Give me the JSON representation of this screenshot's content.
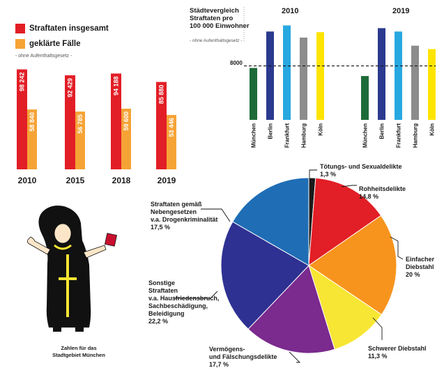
{
  "colors": {
    "red": "#e21e26",
    "orange": "#f6a336",
    "munich": "#1e6b3a",
    "berlin": "#2b3a8f",
    "frankfurt": "#27a8e0",
    "hamburg": "#8c8c8c",
    "koeln": "#ffe400"
  },
  "legend": {
    "total_label": "Straftaten insgesamt",
    "solved_label": "geklärte Fälle",
    "note": "- ohne Aufenthaltsgesetz -"
  },
  "city_compare": {
    "title_lines": [
      "Städtevergleich",
      "Straftaten pro",
      "100 000 Einwohner"
    ],
    "note": "- ohne Aufenthaltsgesetz -",
    "reference_label": "8000"
  },
  "caption_lines": [
    "Zahlen für das",
    "Stadtgebiet München"
  ],
  "chart_data": [
    {
      "type": "bar",
      "categories": [
        "2010",
        "2015",
        "2018",
        "2019"
      ],
      "series": [
        {
          "name": "Straftaten insgesamt",
          "values": [
            98242,
            92429,
            94188,
            85880
          ],
          "labels": [
            "98 242",
            "92 429",
            "94 188",
            "85 880"
          ]
        },
        {
          "name": "geklärte Fälle",
          "values": [
            58840,
            56785,
            59600,
            53446
          ],
          "labels": [
            "58 840",
            "56 785",
            "59 600",
            "53 446"
          ]
        }
      ]
    },
    {
      "type": "bar",
      "title": "Städtevergleich Straftaten pro 100 000 Einwohner",
      "groups": [
        "2010",
        "2019"
      ],
      "categories": [
        "München",
        "Berlin",
        "Frankfurt",
        "Hamburg",
        "Köln"
      ],
      "series": [
        {
          "name": "2010",
          "values": [
            7700,
            13100,
            14000,
            12200,
            13000
          ]
        },
        {
          "name": "2019",
          "values": [
            6500,
            13600,
            13100,
            11000,
            10500
          ]
        }
      ],
      "reference_line": 8000,
      "ylim": [
        0,
        15500
      ]
    },
    {
      "type": "pie",
      "slices": [
        {
          "label": "Tötungs- und Sexualdelikte",
          "value": 1.3,
          "value_label": "1,3 %",
          "color": "#1a1a1a"
        },
        {
          "label": "Rohheitsdelikte",
          "value": 14.8,
          "value_label": "14,8 %",
          "color": "#e21e26"
        },
        {
          "label": "Einfacher Diebstahl",
          "value": 20,
          "value_label": "20 %",
          "color": "#f7941d"
        },
        {
          "label": "Schwerer Diebstahl",
          "value": 11.3,
          "value_label": "11,3 %",
          "color": "#f7e633"
        },
        {
          "label": "Vermögens- und Fälschungsdelikte",
          "value": 17.7,
          "value_label": "17,7 %",
          "color": "#7b2a8e"
        },
        {
          "label": "Sonstige Straftaten v.a. Hausfriedensbruch, Sachbeschädigung, Beleidigung",
          "value": 22.2,
          "value_label": "22,2 %",
          "color": "#2e3192"
        },
        {
          "label": "Straftaten gemäß Nebengesetzen v.a. Drogenkriminalität",
          "value": 17.5,
          "value_label": "17,5 %",
          "color": "#1f6db5"
        }
      ]
    }
  ],
  "pie_text": [
    {
      "lines": [
        "Tötungs- und Sexualdelikte"
      ],
      "value_label": "1,3 %"
    },
    {
      "lines": [
        "Rohheitsdelikte"
      ],
      "value_label": "14,8 %"
    },
    {
      "lines": [
        "Einfacher",
        "Diebstahl"
      ],
      "value_label": "20 %"
    },
    {
      "lines": [
        "Schwerer Diebstahl"
      ],
      "value_label": "11,3 %"
    },
    {
      "lines": [
        "Vermögens-",
        "und Fälschungsdelikte"
      ],
      "value_label": "17,7 %"
    },
    {
      "lines": [
        "Sonstige",
        "Straftaten",
        "v.a. Hausfriedensbruch,",
        "Sachbeschädigung,",
        "Beleidigung"
      ],
      "value_label": "22,2 %"
    },
    {
      "lines": [
        "Straftaten gemäß",
        "Nebengesetzen",
        "v.a. Drogenkriminalität"
      ],
      "value_label": "17,5 %"
    }
  ]
}
